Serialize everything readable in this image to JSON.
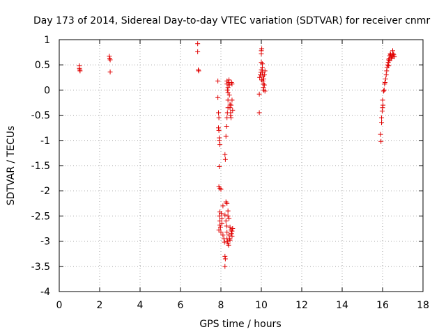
{
  "chart_data": {
    "type": "scatter",
    "title": "Day 173 of 2014, Sidereal Day-to-day VTEC variation (SDTVAR) for receiver cnmr",
    "xlabel": "GPS time / hours",
    "ylabel": "SDTVAR / TECUs",
    "xlim": [
      0,
      18
    ],
    "ylim": [
      -4,
      1
    ],
    "xticks": [
      0,
      2,
      4,
      6,
      8,
      10,
      12,
      14,
      16,
      18
    ],
    "yticks": [
      1,
      0.5,
      0,
      -0.5,
      -1,
      -1.5,
      -2,
      -2.5,
      -3,
      -3.5,
      -4
    ],
    "xtick_labels": [
      "0",
      "2",
      "4",
      "6",
      "8",
      "10",
      "12",
      "14",
      "16",
      "18"
    ],
    "ytick_labels": [
      "1",
      "0.5",
      "0",
      "-0.5",
      "-1",
      "-1.5",
      "-2",
      "-2.5",
      "-3",
      "-3.5",
      "-4"
    ],
    "grid": true,
    "marker": "+",
    "marker_color": "#e00000",
    "series": [
      {
        "name": "SDTVAR",
        "points": [
          [
            1.0,
            0.48
          ],
          [
            1.0,
            0.43
          ],
          [
            1.02,
            0.4
          ],
          [
            1.03,
            0.38
          ],
          [
            2.48,
            0.67
          ],
          [
            2.5,
            0.62
          ],
          [
            2.52,
            0.6
          ],
          [
            2.52,
            0.36
          ],
          [
            6.85,
            0.92
          ],
          [
            6.85,
            0.76
          ],
          [
            6.88,
            0.4
          ],
          [
            6.9,
            0.38
          ],
          [
            7.85,
            0.18
          ],
          [
            7.85,
            -0.15
          ],
          [
            7.88,
            -0.45
          ],
          [
            7.9,
            -0.55
          ],
          [
            7.88,
            -0.75
          ],
          [
            7.9,
            -0.8
          ],
          [
            7.92,
            -0.95
          ],
          [
            7.92,
            -1.0
          ],
          [
            7.95,
            -1.08
          ],
          [
            7.92,
            -1.52
          ],
          [
            7.9,
            -1.92
          ],
          [
            7.95,
            -1.95
          ],
          [
            8.0,
            -1.97
          ],
          [
            7.95,
            -2.42
          ],
          [
            7.92,
            -2.5
          ],
          [
            7.95,
            -2.6
          ],
          [
            7.98,
            -2.72
          ],
          [
            7.9,
            -2.78
          ],
          [
            8.0,
            -2.82
          ],
          [
            8.02,
            -2.45
          ],
          [
            7.95,
            -2.68
          ],
          [
            8.05,
            -2.55
          ],
          [
            8.05,
            -2.65
          ],
          [
            8.1,
            -2.3
          ],
          [
            8.1,
            -2.88
          ],
          [
            8.15,
            -2.95
          ],
          [
            8.18,
            -3.02
          ],
          [
            8.2,
            -3.3
          ],
          [
            8.22,
            -3.35
          ],
          [
            8.2,
            -3.5
          ],
          [
            8.2,
            -2.48
          ],
          [
            8.25,
            -2.6
          ],
          [
            8.28,
            -2.7
          ],
          [
            8.3,
            -2.82
          ],
          [
            8.3,
            -2.95
          ],
          [
            8.32,
            -3.0
          ],
          [
            8.35,
            -3.05
          ],
          [
            8.38,
            -3.08
          ],
          [
            8.25,
            -2.22
          ],
          [
            8.3,
            -2.25
          ],
          [
            8.35,
            -2.4
          ],
          [
            8.35,
            -2.5
          ],
          [
            8.4,
            -2.55
          ],
          [
            8.4,
            -2.88
          ],
          [
            8.42,
            -2.95
          ],
          [
            8.45,
            -2.98
          ],
          [
            8.45,
            -2.72
          ],
          [
            8.5,
            -2.78
          ],
          [
            8.52,
            -2.85
          ],
          [
            8.55,
            -2.8
          ],
          [
            8.55,
            -2.9
          ],
          [
            8.58,
            -2.75
          ],
          [
            8.2,
            -1.28
          ],
          [
            8.22,
            -1.38
          ],
          [
            8.25,
            -0.92
          ],
          [
            8.28,
            -0.72
          ],
          [
            8.3,
            -0.55
          ],
          [
            8.32,
            -0.45
          ],
          [
            8.35,
            -0.35
          ],
          [
            8.35,
            -0.2
          ],
          [
            8.3,
            0.18
          ],
          [
            8.3,
            0.12
          ],
          [
            8.32,
            0.0
          ],
          [
            8.35,
            0.05
          ],
          [
            8.35,
            -0.05
          ],
          [
            8.38,
            0.15
          ],
          [
            8.4,
            0.2
          ],
          [
            8.42,
            0.1
          ],
          [
            8.42,
            -0.1
          ],
          [
            8.45,
            -0.28
          ],
          [
            8.45,
            -0.35
          ],
          [
            8.48,
            -0.45
          ],
          [
            8.48,
            -0.5
          ],
          [
            8.5,
            -0.3
          ],
          [
            8.5,
            -0.55
          ],
          [
            8.52,
            0.15
          ],
          [
            8.55,
            0.12
          ],
          [
            8.55,
            -0.2
          ],
          [
            8.58,
            -0.4
          ],
          [
            9.9,
            -0.08
          ],
          [
            9.9,
            -0.45
          ],
          [
            9.92,
            0.25
          ],
          [
            9.95,
            0.3
          ],
          [
            9.98,
            0.35
          ],
          [
            10.0,
            0.4
          ],
          [
            10.0,
            0.55
          ],
          [
            10.02,
            0.2
          ],
          [
            10.0,
            0.72
          ],
          [
            10.0,
            0.78
          ],
          [
            10.02,
            0.82
          ],
          [
            10.05,
            0.52
          ],
          [
            10.05,
            0.45
          ],
          [
            10.05,
            0.35
          ],
          [
            10.08,
            0.28
          ],
          [
            10.08,
            0.18
          ],
          [
            10.1,
            0.12
          ],
          [
            10.1,
            0.05
          ],
          [
            10.12,
            0.0
          ],
          [
            10.12,
            0.22
          ],
          [
            10.15,
            0.3
          ],
          [
            10.15,
            0.1
          ],
          [
            10.18,
            -0.02
          ],
          [
            10.18,
            0.38
          ],
          [
            15.9,
            -0.88
          ],
          [
            15.92,
            -1.02
          ],
          [
            15.95,
            -0.65
          ],
          [
            15.95,
            -0.55
          ],
          [
            15.98,
            -0.42
          ],
          [
            16.0,
            -0.35
          ],
          [
            16.02,
            -0.3
          ],
          [
            16.0,
            -0.2
          ],
          [
            16.05,
            -0.02
          ],
          [
            16.08,
            0.0
          ],
          [
            16.1,
            0.12
          ],
          [
            16.12,
            0.15
          ],
          [
            16.15,
            0.22
          ],
          [
            16.18,
            0.3
          ],
          [
            16.2,
            0.38
          ],
          [
            16.22,
            0.45
          ],
          [
            16.25,
            0.5
          ],
          [
            16.28,
            0.55
          ],
          [
            16.3,
            0.6
          ],
          [
            16.32,
            0.62
          ],
          [
            16.35,
            0.68
          ],
          [
            16.38,
            0.72
          ],
          [
            16.4,
            0.7
          ],
          [
            16.42,
            0.65
          ],
          [
            16.45,
            0.62
          ],
          [
            16.48,
            0.68
          ],
          [
            16.5,
            0.78
          ],
          [
            16.52,
            0.72
          ],
          [
            16.55,
            0.7
          ],
          [
            16.58,
            0.66
          ],
          [
            16.35,
            0.58
          ],
          [
            16.3,
            0.48
          ]
        ]
      }
    ]
  }
}
